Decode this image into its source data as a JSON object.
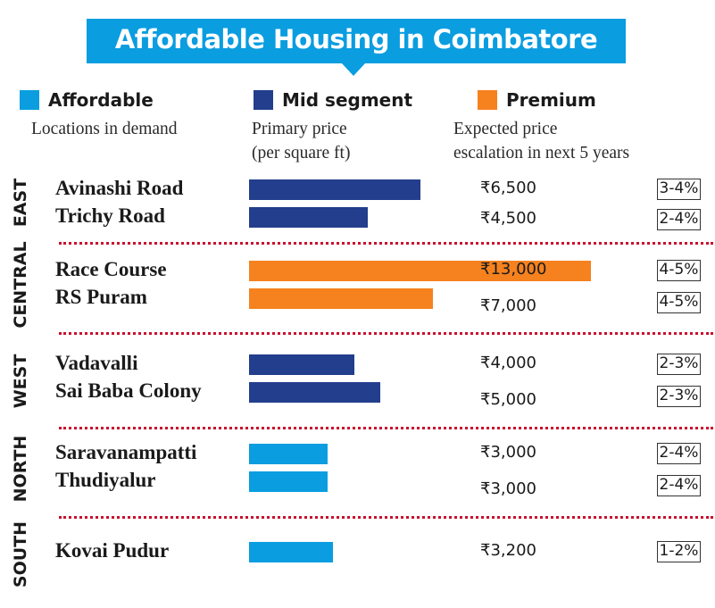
{
  "header": {
    "title": "Affordable Housing in Coimbatore"
  },
  "legend": [
    {
      "label": "Affordable",
      "color": "#0a9de0"
    },
    {
      "label": "Mid segment",
      "color": "#223e8c"
    },
    {
      "label": "Premium",
      "color": "#f5821f"
    }
  ],
  "columns": {
    "locations": "Locations in demand",
    "price_line1": "Primary price",
    "price_line2": "(per square ft)",
    "escalation_line1": "Expected price",
    "escalation_line2": "escalation in next 5 years"
  },
  "chart_data": {
    "type": "bar",
    "orientation": "horizontal",
    "title": "Affordable Housing in Coimbatore",
    "xlabel": "Primary price (per square ft)",
    "ylabel": "Locations in demand",
    "currency": "₹",
    "xlim": [
      0,
      13000
    ],
    "grid": false,
    "legend_position": "top",
    "segments": {
      "Affordable": "#0a9de0",
      "Mid segment": "#223e8c",
      "Premium": "#f5821f"
    },
    "regions": [
      {
        "name": "EAST",
        "locations": [
          {
            "name": "Avinashi Road",
            "price": 6500,
            "price_label": "₹6,500",
            "segment": "Mid segment",
            "escalation": "3-4%"
          },
          {
            "name": "Trichy Road",
            "price": 4500,
            "price_label": "₹4,500",
            "segment": "Mid segment",
            "escalation": "2-4%"
          }
        ]
      },
      {
        "name": "CENTRAL",
        "locations": [
          {
            "name": "Race Course",
            "price": 13000,
            "price_label": "₹13,000",
            "segment": "Premium",
            "escalation": "4-5%"
          },
          {
            "name": "RS Puram",
            "price": 7000,
            "price_label": "₹7,000",
            "segment": "Premium",
            "escalation": "4-5%"
          }
        ]
      },
      {
        "name": "WEST",
        "locations": [
          {
            "name": "Vadavalli",
            "price": 4000,
            "price_label": "₹4,000",
            "segment": "Mid segment",
            "escalation": "2-3%"
          },
          {
            "name": "Sai Baba Colony",
            "price": 5000,
            "price_label": "₹5,000",
            "segment": "Mid segment",
            "escalation": "2-3%"
          }
        ]
      },
      {
        "name": "NORTH",
        "locations": [
          {
            "name": "Saravanampatti",
            "price": 3000,
            "price_label": "₹3,000",
            "segment": "Affordable",
            "escalation": "2-4%"
          },
          {
            "name": "Thudiyalur",
            "price": 3000,
            "price_label": "₹3,000",
            "segment": "Affordable",
            "escalation": "2-4%"
          }
        ]
      },
      {
        "name": "SOUTH",
        "locations": [
          {
            "name": "Kovai Pudur",
            "price": 3200,
            "price_label": "₹3,200",
            "segment": "Affordable",
            "escalation": "1-2%"
          }
        ]
      }
    ]
  }
}
